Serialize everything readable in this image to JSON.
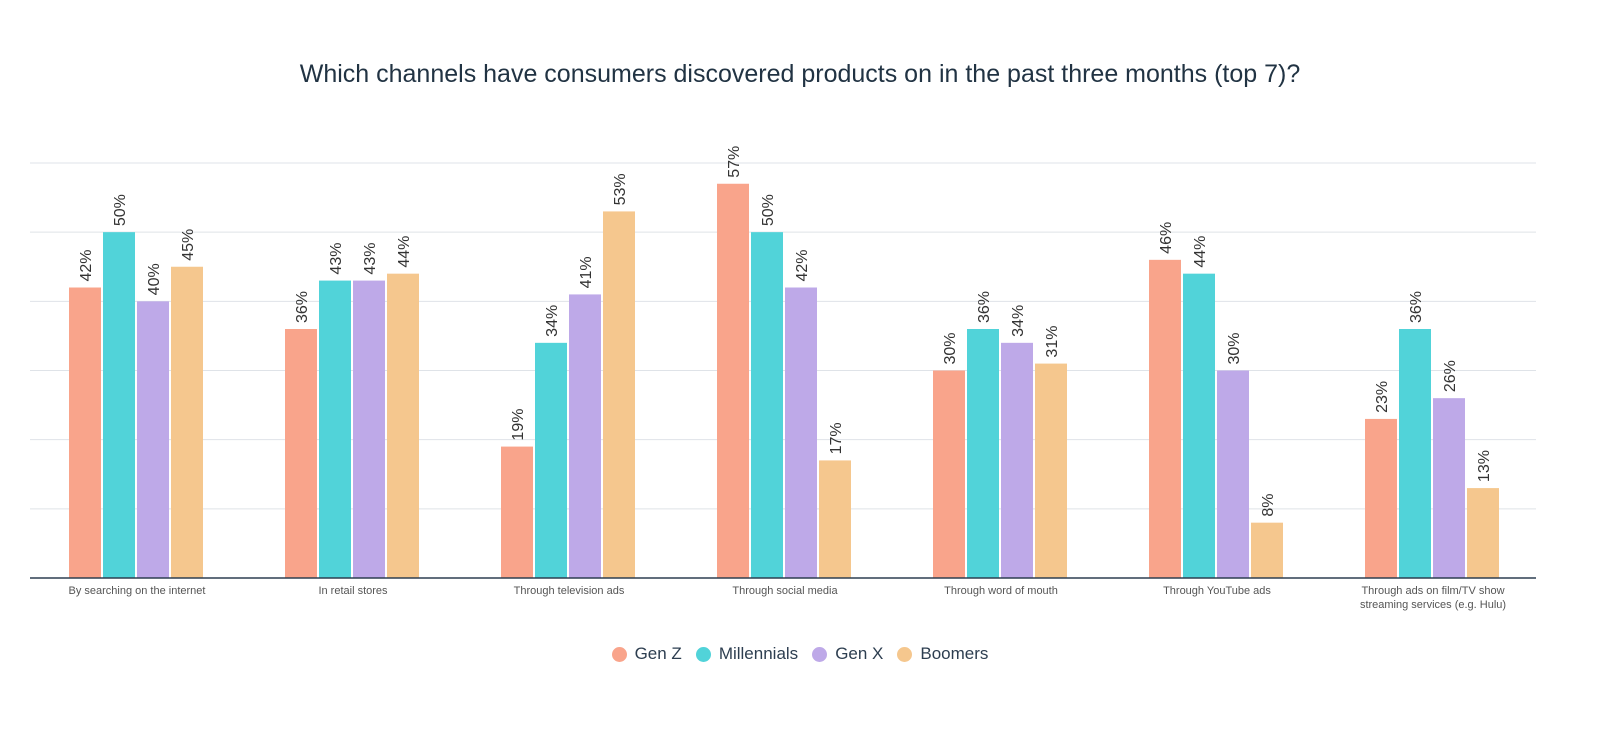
{
  "chart_data": {
    "type": "bar",
    "title": "Which channels have consumers discovered products on in the past three months (top 7)?",
    "categories": [
      "By searching on the internet",
      "In retail stores",
      "Through television ads",
      "Through social media",
      "Through word of mouth",
      "Through YouTube ads",
      "Through ads on film/TV show streaming services (e.g. Hulu)"
    ],
    "category_lines": [
      [
        "By searching on the internet"
      ],
      [
        "In retail stores"
      ],
      [
        "Through television ads"
      ],
      [
        "Through social media"
      ],
      [
        "Through word of mouth"
      ],
      [
        "Through YouTube ads"
      ],
      [
        "Through ads on film/TV show",
        "streaming services (e.g. Hulu)"
      ]
    ],
    "series": [
      {
        "name": "Gen Z",
        "color": "#F9A48B",
        "values": [
          42,
          36,
          19,
          57,
          30,
          46,
          23
        ]
      },
      {
        "name": "Millennials",
        "color": "#51D3D9",
        "values": [
          50,
          43,
          34,
          50,
          36,
          44,
          36
        ]
      },
      {
        "name": "Gen X",
        "color": "#BEA9E8",
        "values": [
          40,
          43,
          41,
          42,
          34,
          30,
          26
        ]
      },
      {
        "name": "Boomers",
        "color": "#F5C78E",
        "values": [
          45,
          44,
          53,
          17,
          31,
          8,
          13
        ]
      }
    ],
    "ylim": [
      0,
      60
    ],
    "grid": true,
    "y_ticks_shown": false,
    "value_suffix": "%",
    "legend_position": "bottom"
  }
}
